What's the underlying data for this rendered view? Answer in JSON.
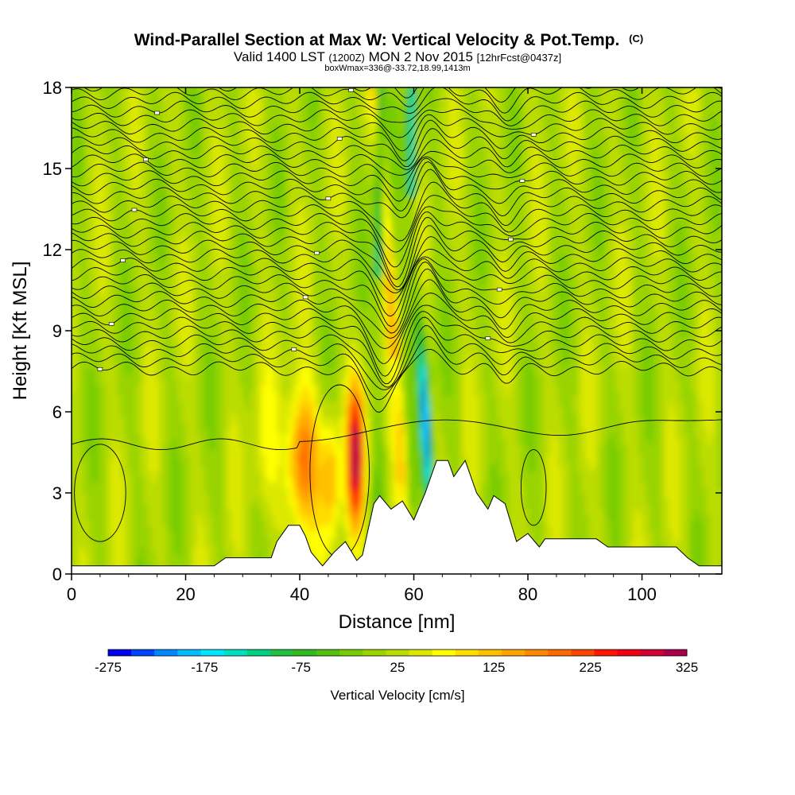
{
  "chart_data": {
    "type": "heatmap",
    "title": "Wind-Parallel Section at Max W: Vertical Velocity & Pot.Temp.",
    "title_suffix": "(C)",
    "subtitle_main": "Valid 1400 LST",
    "subtitle_utc": "(1200Z)",
    "subtitle_date": "MON 2 Nov 2015",
    "subtitle_forecast": "[12hrFcst@0437z]",
    "subtitle_box": "boxWmax=336@-33.72,18.99,1413m",
    "xlabel": "Distance [nm]",
    "ylabel": "Height [Kft MSL]",
    "xlim": [
      0,
      114
    ],
    "ylim": [
      0,
      18
    ],
    "x_ticks": [
      "0",
      "20",
      "40",
      "60",
      "80",
      "100"
    ],
    "x_tick_values": [
      0,
      20,
      40,
      60,
      80,
      100
    ],
    "y_ticks": [
      "0",
      "3",
      "6",
      "9",
      "12",
      "15",
      "18"
    ],
    "y_tick_values": [
      0,
      3,
      6,
      9,
      12,
      15,
      18
    ],
    "colorbar": {
      "label": "Vertical Velocity [cm/s]",
      "min": -275,
      "max": 325,
      "step": 25,
      "tick_labels": [
        "-275",
        "-175",
        "-75",
        "25",
        "125",
        "225",
        "325"
      ],
      "tick_values": [
        -275,
        -175,
        -75,
        25,
        125,
        225,
        325
      ],
      "colors": [
        "#0000ee",
        "#0044ff",
        "#0088ff",
        "#00bbff",
        "#00e5ff",
        "#00e0c0",
        "#00d080",
        "#22c040",
        "#33b820",
        "#55c010",
        "#77cc00",
        "#99d400",
        "#bbdc00",
        "#dde800",
        "#ffff00",
        "#ffdd00",
        "#ffc000",
        "#ffa500",
        "#ff8800",
        "#ff6a00",
        "#ff4400",
        "#ff1500",
        "#ee0015",
        "#d00035",
        "#a8004a"
      ]
    },
    "terrain_profile": {
      "x": [
        0,
        25,
        27,
        30,
        35,
        36,
        38,
        40,
        41,
        42,
        44,
        46,
        48,
        50,
        51,
        53,
        54,
        56,
        58,
        60,
        62,
        64,
        66,
        67,
        69,
        71,
        73,
        74,
        76,
        78,
        80,
        82,
        83,
        86,
        92,
        94,
        98,
        102,
        106,
        108,
        110,
        114
      ],
      "z": [
        0.3,
        0.3,
        0.6,
        0.6,
        0.6,
        1.2,
        1.8,
        1.8,
        1.4,
        0.8,
        0.3,
        0.8,
        1.2,
        0.5,
        0.7,
        2.6,
        2.9,
        2.4,
        2.7,
        2.0,
        3.0,
        4.2,
        4.2,
        3.6,
        4.2,
        3.0,
        2.4,
        2.9,
        2.6,
        1.2,
        1.5,
        1.0,
        1.3,
        1.3,
        1.3,
        1.0,
        1.0,
        1.0,
        1.0,
        0.6,
        0.3,
        0.3
      ]
    },
    "isentrope_label_count": 36
  }
}
